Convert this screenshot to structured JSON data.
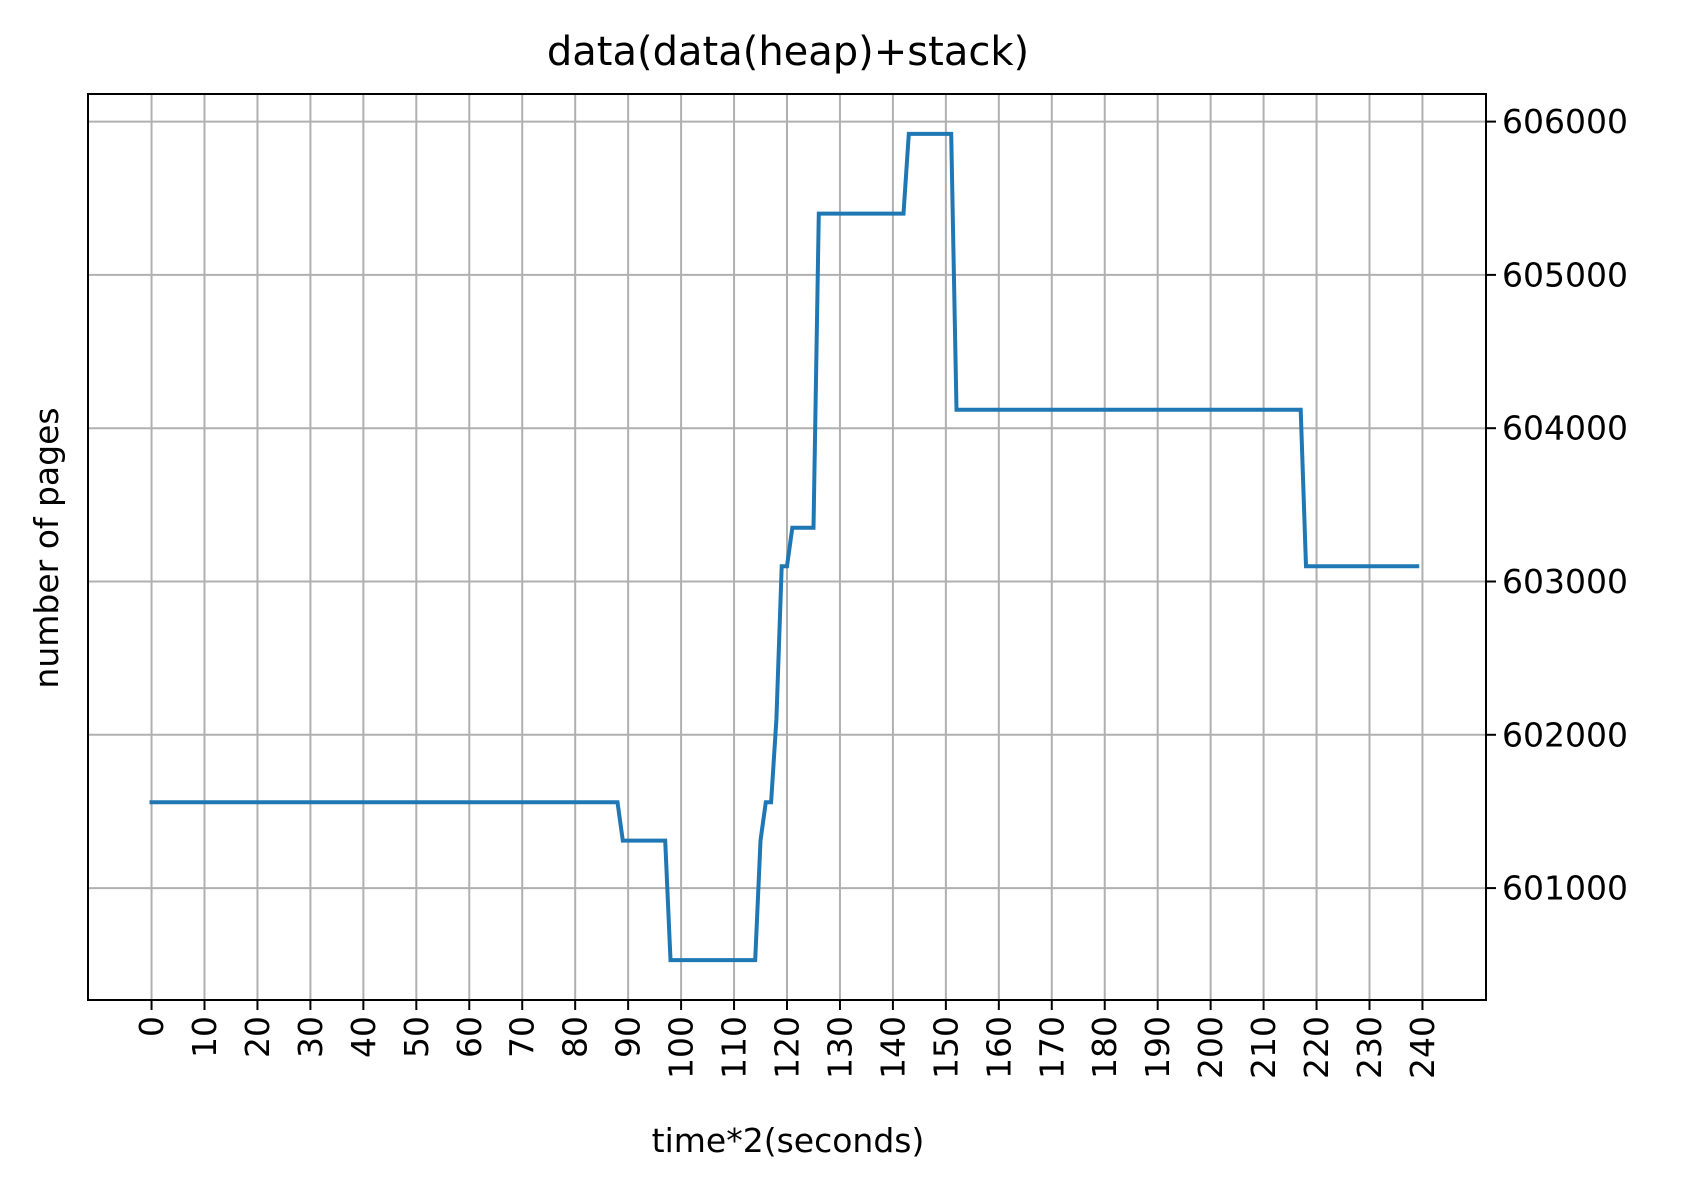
{
  "chart_data": {
    "type": "line",
    "title": "data(data(heap)+stack)",
    "xlabel": "time*2(seconds)",
    "ylabel": "number of pages",
    "x_ticks": [
      "0",
      "10",
      "20",
      "30",
      "40",
      "50",
      "60",
      "70",
      "80",
      "90",
      "100",
      "110",
      "120",
      "130",
      "140",
      "150",
      "160",
      "170",
      "180",
      "190",
      "200",
      "210",
      "220",
      "230",
      "240"
    ],
    "y_ticks": [
      "601000",
      "602000",
      "603000",
      "604000",
      "605000",
      "606000"
    ],
    "xlim": [
      -12,
      252
    ],
    "ylim": [
      600270,
      606180
    ],
    "y_axis_side": "right",
    "grid": true,
    "series": [
      {
        "color": "#1f77b4",
        "x": [
          0,
          88,
          89,
          97,
          98,
          114,
          115,
          116,
          117,
          118,
          119,
          120,
          121,
          122,
          125,
          126,
          142,
          143,
          151,
          152,
          217,
          218,
          239
        ],
        "y": [
          601560,
          601560,
          601310,
          601310,
          600530,
          600530,
          601310,
          601560,
          601560,
          602100,
          603100,
          603100,
          603350,
          603350,
          603350,
          605400,
          605400,
          605920,
          605920,
          604120,
          604120,
          603100,
          603100
        ]
      }
    ]
  }
}
